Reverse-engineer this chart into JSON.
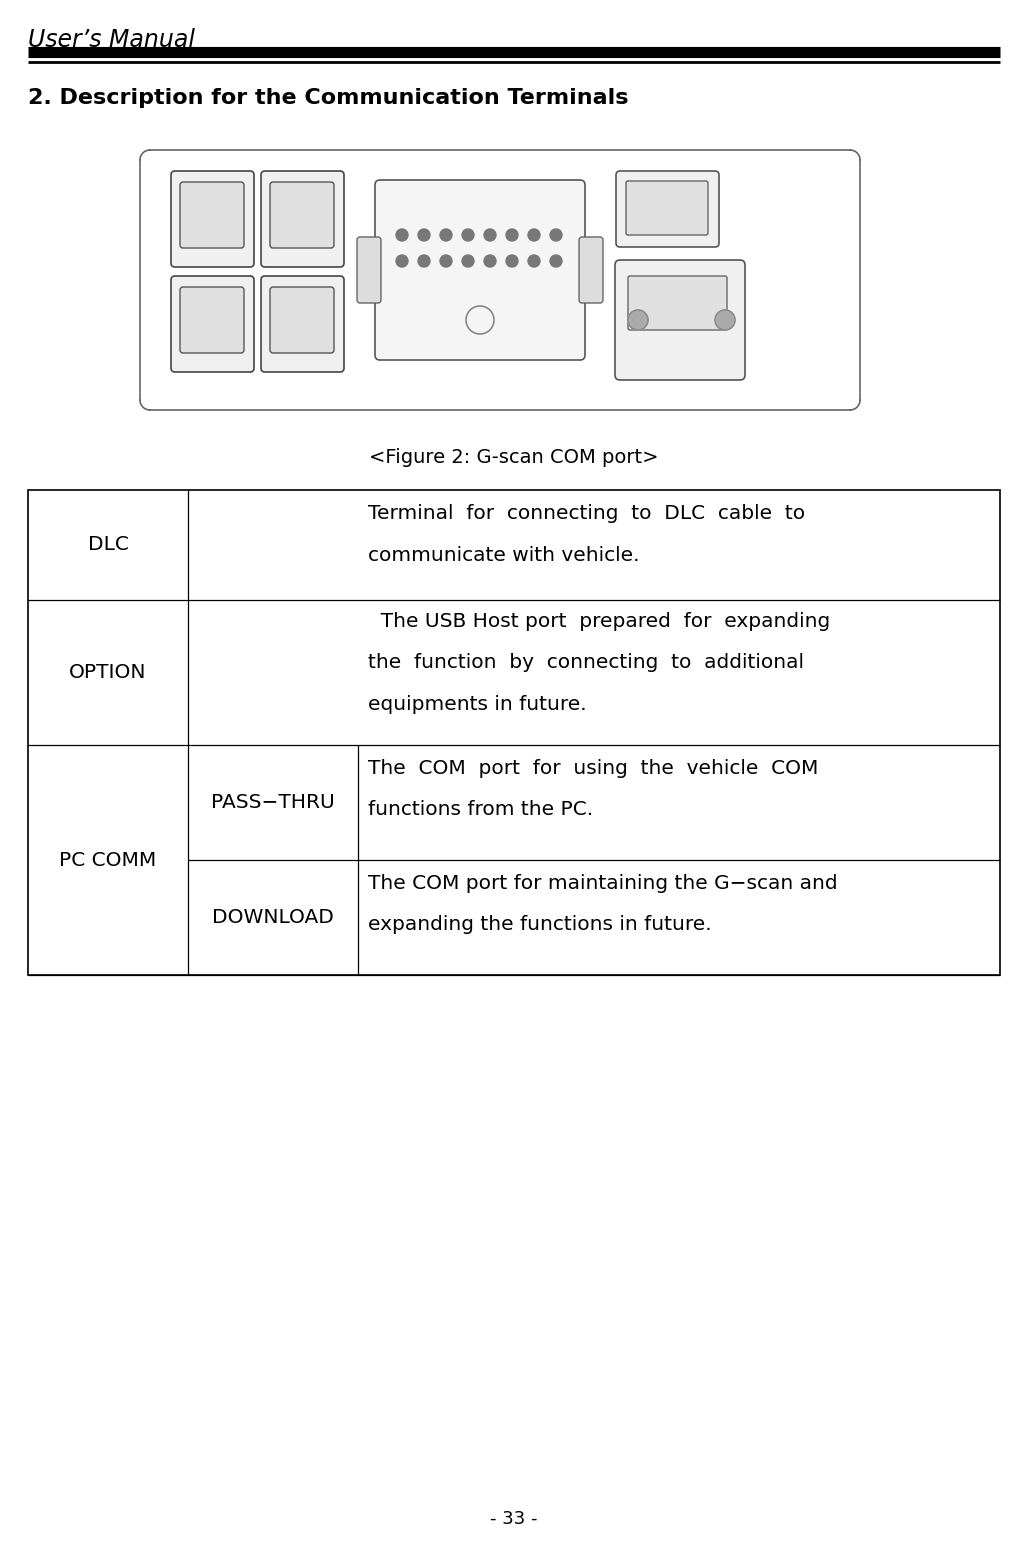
{
  "page_title": "User’s Manual",
  "page_number": "- 33 -",
  "section_title": "2. Description for the Communication Terminals",
  "figure_caption": "<Figure 2: G-scan COM port>",
  "background_color": "#ffffff",
  "table_rows": [
    {
      "label1": "DLC",
      "label2": null,
      "spans": true,
      "line1": "Terminal  for  connecting  to  DLC  cable  to",
      "line2": "communicate with vehicle.",
      "line3": null
    },
    {
      "label1": "OPTION",
      "label2": null,
      "spans": true,
      "line1": "  The USB Host port  prepared  for  expanding",
      "line2": "the  function  by  connecting  to  additional",
      "line3": "equipments in future."
    },
    {
      "label1": "PC COMM",
      "label2": "PASS−THRU",
      "spans": false,
      "line1": "The  COM  port  for  using  the  vehicle  COM",
      "line2": "functions from the PC.",
      "line3": null
    },
    {
      "label1": "PC COMM",
      "label2": "DOWNLOAD",
      "spans": false,
      "line1": "The COM port for maintaining the G−scan and",
      "line2": "expanding the functions in future.",
      "line3": null
    }
  ]
}
